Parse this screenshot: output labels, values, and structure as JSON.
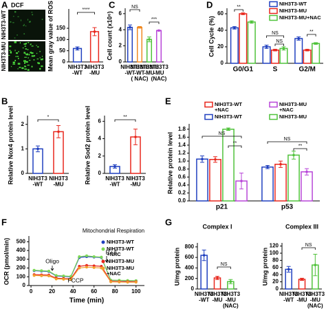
{
  "panel_labels": [
    "A",
    "B",
    "C",
    "D",
    "E",
    "F",
    "G"
  ],
  "chart_data": [
    {
      "type": "bar",
      "image_labels": {
        "stain": "DCF",
        "rows": [
          "NIH3T3-WT",
          "NIH3T3-MU"
        ]
      },
      "ylabel": "Mean gray value of ROS",
      "categories": [
        [
          "NIH3T3",
          "-WT"
        ],
        [
          "NIH3T3",
          "-MU"
        ]
      ],
      "values": [
        60,
        135
      ],
      "errors": [
        7,
        18
      ],
      "colors": [
        "#1f3fbf",
        "#e8261c"
      ],
      "ylim": [
        0,
        230
      ],
      "yticks": [
        0,
        50,
        100,
        150
      ],
      "annotations": [
        "****"
      ]
    },
    {
      "type": "bar",
      "ylabel": "Cell count (x10⁶)",
      "categories": [
        [
          "NIH3T3",
          "-WT"
        ],
        [
          "NIH3T3",
          "-WT",
          "( NAC)"
        ],
        [
          "NIH3T3",
          "-MU"
        ],
        [
          "NIH3T3",
          "-MU",
          "(NAC)"
        ]
      ],
      "values": [
        4.3,
        4.3,
        2.8,
        3.9
      ],
      "errors": [
        0.3,
        0.1,
        0.3,
        0.05
      ],
      "colors": [
        "#1f3fbf",
        "#f08a24",
        "#4fc23a",
        "#b845d8"
      ],
      "ylim": [
        0,
        6.5
      ],
      "yticks": [
        0,
        2,
        4,
        6
      ],
      "annotations": [
        "NS",
        "***"
      ]
    },
    {
      "type": "bar",
      "ylabel": "Cell Cycle (%)",
      "categories": [
        "G0/G1",
        "S",
        "G2/M"
      ],
      "series": [
        {
          "name": [
            "NIH3T3-WT"
          ],
          "color": "#1f3fbf",
          "values": [
            43,
            20,
            30
          ],
          "errors": [
            1.5,
            2,
            2
          ]
        },
        {
          "name": [
            "NIH3T3-MU"
          ],
          "color": "#e8261c",
          "values": [
            60,
            16,
            16
          ],
          "errors": [
            1,
            1,
            1
          ]
        },
        {
          "name": [
            "NIH3T3-MU+NAC"
          ],
          "color": "#4fc23a",
          "values": [
            50,
            18,
            24
          ],
          "errors": [
            1.5,
            2,
            1
          ]
        }
      ],
      "ylim": [
        0,
        65
      ],
      "yticks": [
        0,
        20,
        40,
        60
      ],
      "annotations": [
        "**",
        "NS",
        "NS",
        "**"
      ]
    },
    {
      "type": "bar",
      "ylabel": "Relative Nox4 protein level",
      "categories": [
        [
          "NIH3T3",
          "-WT"
        ],
        [
          "NIH3T3",
          "-MU"
        ]
      ],
      "values": [
        1.0,
        1.7
      ],
      "errors": [
        0.12,
        0.25
      ],
      "colors": [
        "#1f3fbf",
        "#e8261c"
      ],
      "ylim": [
        0,
        2.3
      ],
      "yticks": [
        0,
        1,
        2
      ],
      "annotations": [
        "*"
      ]
    },
    {
      "type": "bar",
      "ylabel": "Relative Sod2 protein level",
      "categories": [
        [
          "NIH3T3",
          "-WT"
        ],
        [
          "NIH3T3",
          "-MU"
        ]
      ],
      "values": [
        0.8,
        4.2
      ],
      "errors": [
        0.2,
        0.9
      ],
      "colors": [
        "#1f3fbf",
        "#e8261c"
      ],
      "ylim": [
        0,
        6.5
      ],
      "yticks": [
        0,
        2,
        4,
        6
      ],
      "annotations": [
        "**"
      ]
    },
    {
      "type": "bar",
      "ylabel": "Relative protein level",
      "categories": [
        "p21",
        "p53"
      ],
      "series": [
        {
          "name": [
            "NIH3T3-WT"
          ],
          "color": "#1f3fbf",
          "values": [
            1.05,
            0.85
          ],
          "errors": [
            0.08,
            0.04
          ]
        },
        {
          "name": [
            "NIH3T3-WT",
            "+NAC"
          ],
          "color": "#e8261c",
          "values": [
            1.04,
            0.92
          ],
          "errors": [
            0.07,
            0.08
          ]
        },
        {
          "name": [
            "NIH3T3-MU"
          ],
          "color": "#4fc23a",
          "values": [
            1.8,
            1.15
          ],
          "errors": [
            0.03,
            0.1
          ]
        },
        {
          "name": [
            "NIH3T3-MU",
            "+NAC"
          ],
          "color": "#b845d8",
          "values": [
            0.5,
            0.73
          ],
          "errors": [
            0.2,
            0.08
          ]
        }
      ],
      "ylim": [
        0,
        1.9
      ],
      "yticks": [
        {
          "value": 0,
          "label": "0.0"
        },
        0.2,
        0.4,
        0.6,
        0.8,
        {
          "value": 1,
          "label": "1.0"
        },
        1.2,
        1.4,
        1.6,
        1.8
      ],
      "annotations": [
        "NS",
        "**",
        "NS",
        "**"
      ]
    },
    {
      "type": "line",
      "ylabel": "OCR (pmol/min)",
      "xlabel": "Time (min)",
      "x": [
        3,
        10,
        17,
        24,
        31,
        38,
        46,
        53,
        60,
        67,
        76,
        84,
        92,
        100
      ],
      "series": [
        {
          "name": [
            "NIH3T3-WT"
          ],
          "color": "#1f3fbf",
          "values": [
            170,
            165,
            160,
            110,
            105,
            100,
            320,
            330,
            325,
            320,
            60,
            58,
            55,
            55
          ]
        },
        {
          "name": [
            "NIH3T3-WT",
            "+NAC"
          ],
          "color": "#7ed957",
          "values": [
            175,
            170,
            165,
            115,
            110,
            105,
            330,
            340,
            330,
            325,
            62,
            60,
            58,
            56
          ]
        },
        {
          "name": [
            "NIH3T3-MU"
          ],
          "color": "#e8261c",
          "values": [
            125,
            122,
            120,
            85,
            80,
            78,
            220,
            230,
            225,
            220,
            48,
            45,
            44,
            43
          ]
        },
        {
          "name": [
            "NIH3T3-MU",
            "+NAC"
          ],
          "color": "#f0a030",
          "values": [
            115,
            112,
            110,
            75,
            72,
            70,
            200,
            210,
            205,
            200,
            42,
            40,
            38,
            38
          ]
        }
      ],
      "xlim": [
        -2,
        108
      ],
      "xticks": [
        0,
        20,
        40,
        60,
        80,
        100
      ],
      "ylim": [
        0,
        550
      ],
      "yticks": [
        0,
        100,
        200,
        300,
        400,
        500
      ],
      "annotations": [
        "Mitochondrial Respiration",
        "Oligo",
        "FCCP",
        "R+A"
      ]
    },
    {
      "type": "bar",
      "title": "Complex I",
      "ylabel": "U/mg protein",
      "categories": [
        [
          "NIH3T3",
          "-WT"
        ],
        [
          "NIH3T3",
          "-MU"
        ],
        [
          "NIH3T3",
          "-MU",
          "(NAC)"
        ]
      ],
      "values": [
        640,
        210,
        140
      ],
      "errors": [
        100,
        30,
        40
      ],
      "colors": [
        "#1f3fbf",
        "#e8261c",
        "#4fc23a"
      ],
      "ylim": [
        0,
        850
      ],
      "yticks": [
        0,
        200,
        400,
        600,
        800
      ],
      "annotations": [
        "NS"
      ]
    },
    {
      "type": "bar",
      "title": "Complex III",
      "ylabel": "U/mg protein",
      "categories": [
        [
          "NIH3T3",
          "-WT"
        ],
        [
          "NIH3T3",
          "-MU"
        ],
        [
          "NIH3T3",
          "-MU",
          "(NAC)"
        ]
      ],
      "values": [
        55,
        27,
        67
      ],
      "errors": [
        8,
        3,
        30
      ],
      "colors": [
        "#1f3fbf",
        "#e8261c",
        "#4fc23a"
      ],
      "ylim": [
        0,
        125
      ],
      "yticks": [
        0,
        20,
        40,
        60,
        80,
        100,
        120
      ],
      "annotations": [
        "NS"
      ]
    }
  ]
}
